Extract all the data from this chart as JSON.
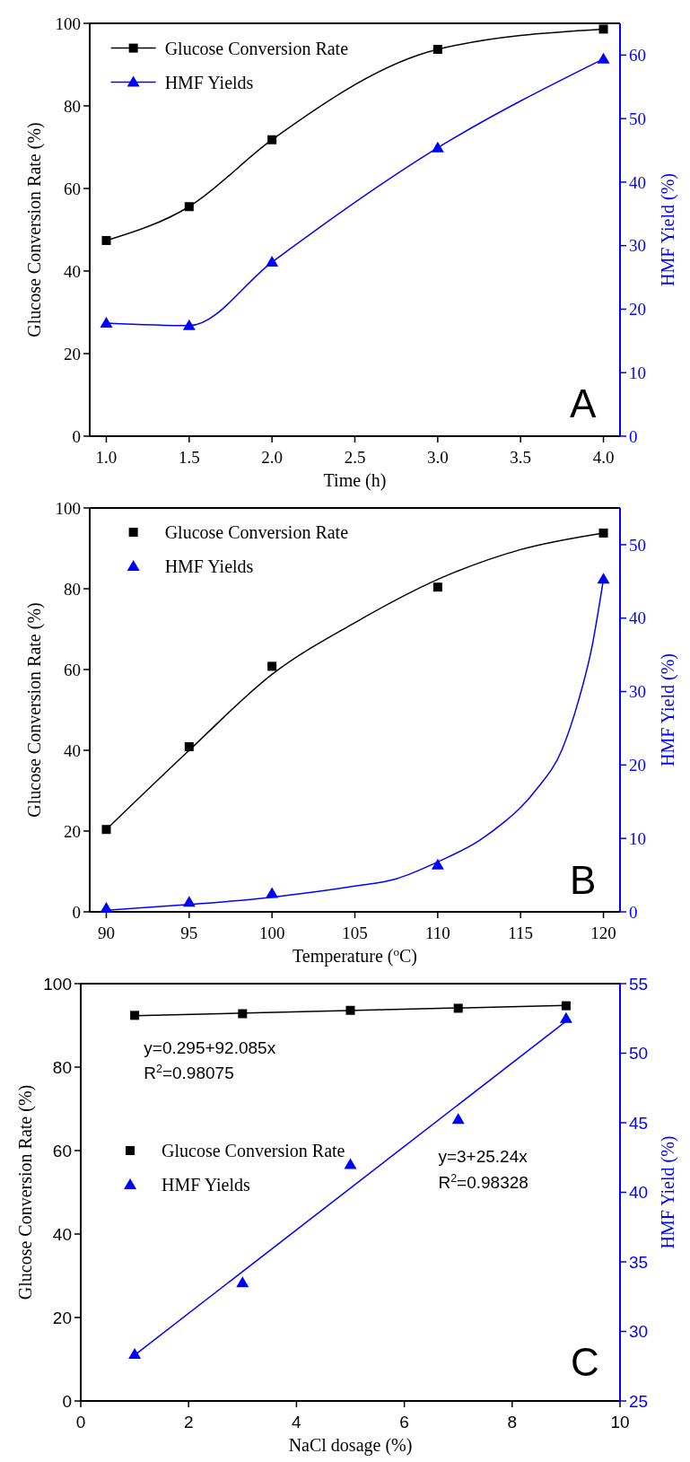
{
  "chart_data": [
    {
      "type": "line",
      "xlabel": "Time (h)",
      "ylabel": "Glucose Conversion Rate (%)",
      "y2label": "HMF Yield (%)",
      "x": [
        1,
        1.5,
        2,
        3,
        4
      ],
      "xlim": [
        0.9,
        4.1
      ],
      "xticks": [
        {
          "value": 1,
          "label": "1.0"
        },
        {
          "value": 1.5,
          "label": "1.5"
        },
        {
          "value": 2,
          "label": "2.0"
        },
        {
          "value": 2.5,
          "label": "2.5"
        },
        {
          "value": 3,
          "label": "3.0"
        },
        {
          "value": 3.5,
          "label": "3.5"
        },
        {
          "value": 4,
          "label": "4.0"
        }
      ],
      "ylim": [
        0,
        100
      ],
      "yticks": [
        0,
        20,
        40,
        60,
        80,
        100
      ],
      "y2lim": [
        0,
        65
      ],
      "y2ticks": [
        0,
        10,
        20,
        30,
        40,
        50,
        60
      ],
      "legend": "top left",
      "annotations": [
        "A"
      ],
      "series": [
        {
          "name": "Glucose Conversion Rate",
          "color": "#000000",
          "marker": "square",
          "values": [
            47.4,
            55.6,
            71.8,
            93.7,
            98.6
          ]
        },
        {
          "name": "HMF Yields",
          "color": "#0000ff",
          "marker": "triangle",
          "axis": "y2",
          "values": [
            17.8,
            17.4,
            27.4,
            45.4,
            59.4
          ]
        }
      ]
    },
    {
      "type": "scatter",
      "xlabel": "Temperature ($^{o}$C)",
      "ylabel": "Glucose Conversion Rate (%)",
      "y2label": "HMF Yield (%)",
      "x": [
        90,
        95,
        100,
        110,
        120
      ],
      "xlim": [
        89,
        121
      ],
      "xticks": [
        90,
        95,
        100,
        105,
        110,
        115,
        120
      ],
      "ylim": [
        0,
        100
      ],
      "yticks": [
        0,
        20,
        40,
        60,
        80,
        100
      ],
      "y2lim": [
        0,
        55
      ],
      "y2ticks": [
        0,
        10,
        20,
        30,
        40,
        50
      ],
      "legend": "top left",
      "annotations": [
        "B"
      ],
      "series": [
        {
          "name": "Glucose Conversion Rate",
          "color": "#000000",
          "marker": "square",
          "values": [
            20.4,
            40.9,
            60.8,
            80.4,
            93.8
          ]
        },
        {
          "name": "HMF Yields",
          "color": "#0000ff",
          "marker": "triangle",
          "axis": "y2",
          "values": [
            0.5,
            1.3,
            2.5,
            6.4,
            45.3
          ]
        },
        {
          "type": "line",
          "color": "#000000",
          "marker": "none",
          "x": [
            90,
            95,
            100,
            105,
            110,
            115,
            120
          ],
          "values": [
            20.4,
            40.0,
            58.8,
            71.6,
            82.3,
            89.7,
            93.8
          ]
        },
        {
          "type": "line",
          "color": "#0000ff",
          "marker": "none",
          "axis": "y2",
          "x": [
            90,
            95,
            100,
            105,
            107.5,
            110,
            112.5,
            114,
            115,
            116,
            117.5,
            118.5,
            119.3,
            120
          ],
          "values": [
            0.2,
            1.0,
            2.0,
            3.5,
            4.5,
            6.8,
            9.7,
            12.2,
            14.2,
            16.8,
            22.1,
            28.8,
            36,
            45.3
          ]
        }
      ]
    },
    {
      "type": "scatter",
      "xlabel": "NaCl dosage (%)",
      "ylabel": "Glucose Conversion Rate (%)",
      "y2label": "HMF Yield (%)",
      "x": [
        1,
        3,
        5,
        7,
        9
      ],
      "xlim": [
        0,
        10
      ],
      "xticks": [
        0,
        2,
        4,
        6,
        8,
        10
      ],
      "ylim": [
        0,
        100
      ],
      "yticks": [
        0,
        20,
        40,
        60,
        80,
        100
      ],
      "y2lim": [
        25,
        55
      ],
      "y2ticks": [
        25,
        30,
        35,
        40,
        45,
        50,
        55
      ],
      "legend": "center left",
      "annotations": [
        "y=0.295+92.085x",
        "R$^{2}$=0.98075",
        "y=3+25.24x",
        "R$^{2}$=0.98328",
        "C"
      ],
      "series": [
        {
          "name": "Glucose Conversion Rate",
          "color": "#000000",
          "marker": "square",
          "values": [
            92.4,
            92.8,
            93.6,
            94.1,
            94.7
          ]
        },
        {
          "name": "HMF Yields",
          "color": "#0000ff",
          "marker": "triangle",
          "axis": "y2",
          "values": [
            28.35,
            33.5,
            42.0,
            45.25,
            52.5
          ]
        },
        {
          "type": "line",
          "color": "#000000",
          "marker": "none",
          "x": [
            1,
            9
          ],
          "values": [
            92.3,
            94.8
          ]
        },
        {
          "type": "line",
          "color": "#0000ff",
          "marker": "none",
          "axis": "y2",
          "x": [
            1,
            9
          ],
          "values": [
            28.3,
            52.3
          ]
        }
      ]
    }
  ]
}
